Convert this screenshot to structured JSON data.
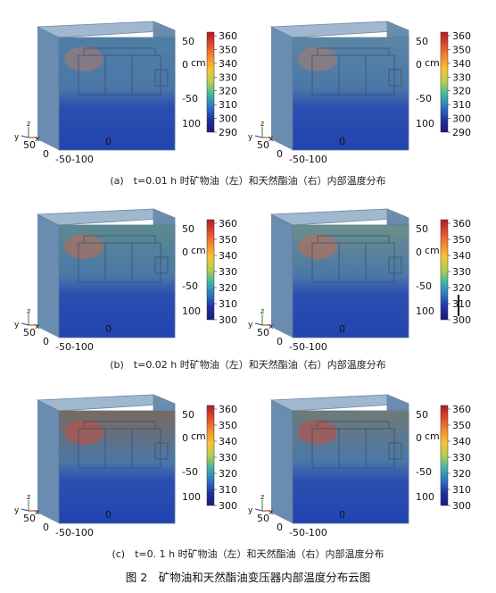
{
  "figure": {
    "title": "图 2　矿物油和天然酯油变压器内部温度分布云图",
    "rows": [
      {
        "caption": "(a)　t=0.01 h 时矿物油（左）和天然酯油（右）内部温度分布",
        "stage": 0
      },
      {
        "caption": "(b)　t=0.02 h 时矿物油（左）和天然酯油（右）内部温度分布",
        "stage": 1
      },
      {
        "caption": "(c)　t=0. 1 h 时矿物油（左）和天然酯油（右）内部温度分布",
        "stage": 2
      }
    ]
  },
  "colorbar": {
    "ticks": [
      "360",
      "350",
      "340",
      "330",
      "320",
      "310",
      "300"
    ],
    "extra_tick": "290",
    "colors": [
      "#b2182b",
      "#e34a2f",
      "#f58b2e",
      "#f7c531",
      "#b4cf4d",
      "#3fb5a6",
      "#2e74c4",
      "#2330a0",
      "#1a1a80"
    ]
  },
  "axes": {
    "z_ticks": [
      "50",
      "0",
      "-50",
      "100"
    ],
    "z_unit": "cm",
    "front_ticks": [
      "0",
      "-50-100"
    ],
    "side_ticks": [
      "50",
      "0"
    ],
    "x_axis": "x",
    "y_axis": "y",
    "z_axis": "z"
  }
}
